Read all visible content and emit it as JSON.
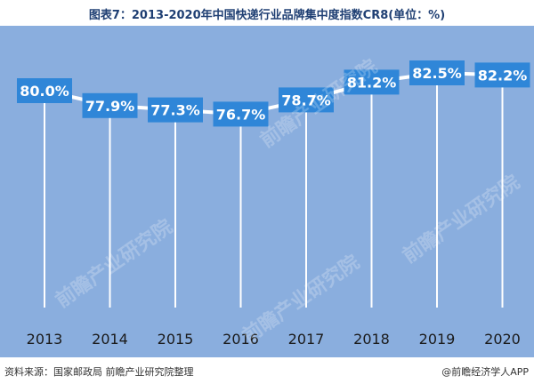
{
  "title": "图表7：2013-2020年中国快递行业品牌集中度指数CR8(单位：%)",
  "watermark": "前瞻产业研究院",
  "footer": {
    "source": "资料来源：国家邮政局 前瞻产业研究院整理",
    "brand": "@前瞻经济学人APP"
  },
  "chart_data": {
    "type": "line",
    "title": "图表7：2013-2020年中国快递行业品牌集中度指数CR8(单位：%)",
    "categories": [
      "2013",
      "2014",
      "2015",
      "2016",
      "2017",
      "2018",
      "2019",
      "2020"
    ],
    "values": [
      80.0,
      77.9,
      77.3,
      76.7,
      78.7,
      81.2,
      82.5,
      82.2
    ],
    "value_labels": [
      "80.0%",
      "77.9%",
      "77.3%",
      "76.7%",
      "78.7%",
      "81.2%",
      "82.5%",
      "82.2%"
    ],
    "ylim": [
      60,
      84
    ],
    "grid": false,
    "line_color": "#ffffff",
    "label_box_color": "#2f86d8",
    "background_color": "#8aaede"
  }
}
